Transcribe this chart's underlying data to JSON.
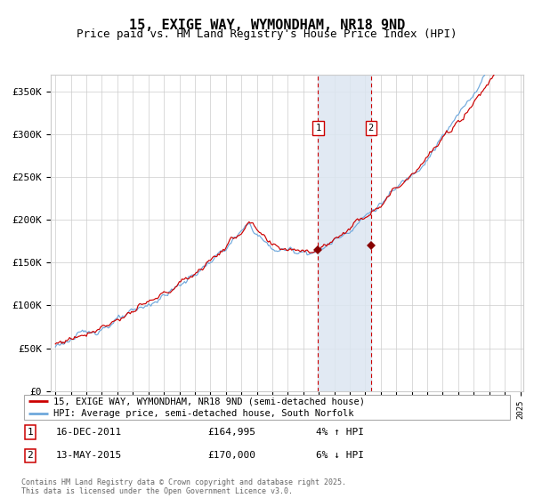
{
  "title": "15, EXIGE WAY, WYMONDHAM, NR18 9ND",
  "subtitle": "Price paid vs. HM Land Registry's House Price Index (HPI)",
  "ylim": [
    0,
    370000
  ],
  "yticks": [
    0,
    50000,
    100000,
    150000,
    200000,
    250000,
    300000,
    350000
  ],
  "ytick_labels": [
    "£0",
    "£50K",
    "£100K",
    "£150K",
    "£200K",
    "£250K",
    "£300K",
    "£350K"
  ],
  "start_year": 1995,
  "end_year": 2025,
  "sale1_date": 2011.96,
  "sale1_price": 164995,
  "sale2_date": 2015.37,
  "sale2_price": 170000,
  "hpi_line_color": "#6fa8dc",
  "price_line_color": "#cc0000",
  "shade_color": "#dce6f1",
  "vline_color": "#cc0000",
  "marker_color": "#880000",
  "legend1": "15, EXIGE WAY, WYMONDHAM, NR18 9ND (semi-detached house)",
  "legend2": "HPI: Average price, semi-detached house, South Norfolk",
  "footer": "Contains HM Land Registry data © Crown copyright and database right 2025.\nThis data is licensed under the Open Government Licence v3.0.",
  "background_color": "#ffffff",
  "grid_color": "#cccccc",
  "title_fontsize": 11,
  "subtitle_fontsize": 9,
  "axis_fontsize": 8
}
